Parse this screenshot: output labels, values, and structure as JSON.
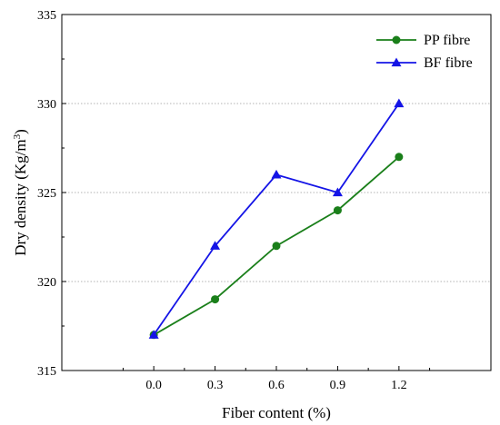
{
  "chart_data": {
    "type": "line",
    "xlabel": "Fiber content (%)",
    "ylabel_main": "Dry density (Kg/m",
    "ylabel_sup": "3",
    "ylabel_close": ")",
    "xlim": [
      -0.45,
      1.65
    ],
    "ylim": [
      315,
      335
    ],
    "x_ticks": [
      "0.0",
      "0.3",
      "0.6",
      "0.9",
      "1.2"
    ],
    "y_ticks": [
      "315",
      "320",
      "325",
      "330",
      "335"
    ],
    "grid": "horizontal dotted",
    "legend_position": "top-right",
    "x": [
      0.0,
      0.3,
      0.6,
      0.9,
      1.2
    ],
    "series": [
      {
        "name": "PP fibre",
        "marker": "circle",
        "color": "#1a7f1a",
        "values": [
          317,
          319,
          322,
          324,
          327
        ]
      },
      {
        "name": "BF fibre",
        "marker": "triangle",
        "color": "#1414e6",
        "values": [
          317,
          322,
          326,
          325,
          330
        ]
      }
    ]
  }
}
